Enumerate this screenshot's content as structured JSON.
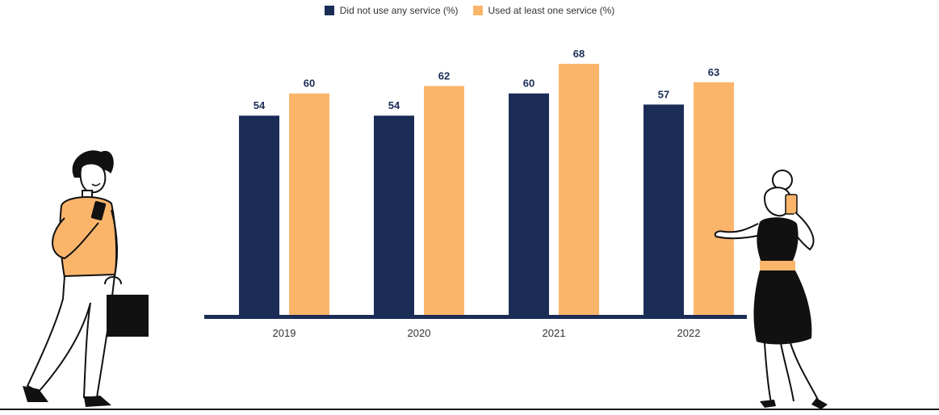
{
  "legend": {
    "series_0": "Did not use any service (%)",
    "series_1": "Used at least one service (%)"
  },
  "colors": {
    "series_0": "#1b2d56",
    "series_1": "#fbb56b",
    "axis": "#1b2d56",
    "label": "#1b2d56",
    "tick": "#333333"
  },
  "chart_data": {
    "type": "bar",
    "categories": [
      "2019",
      "2020",
      "2021",
      "2022"
    ],
    "series": [
      {
        "name": "Did not use any service (%)",
        "values": [
          54,
          54,
          60,
          57
        ]
      },
      {
        "name": "Used at least one service (%)",
        "values": [
          60,
          62,
          68,
          63
        ]
      }
    ],
    "title": "",
    "xlabel": "",
    "ylabel": "",
    "ylim": [
      0,
      68
    ],
    "grid": false,
    "legend_position": "top-center",
    "data_labels": true
  },
  "illustrations": {
    "left": "man-with-phone-and-bag-icon",
    "right": "woman-on-phone-icon"
  }
}
